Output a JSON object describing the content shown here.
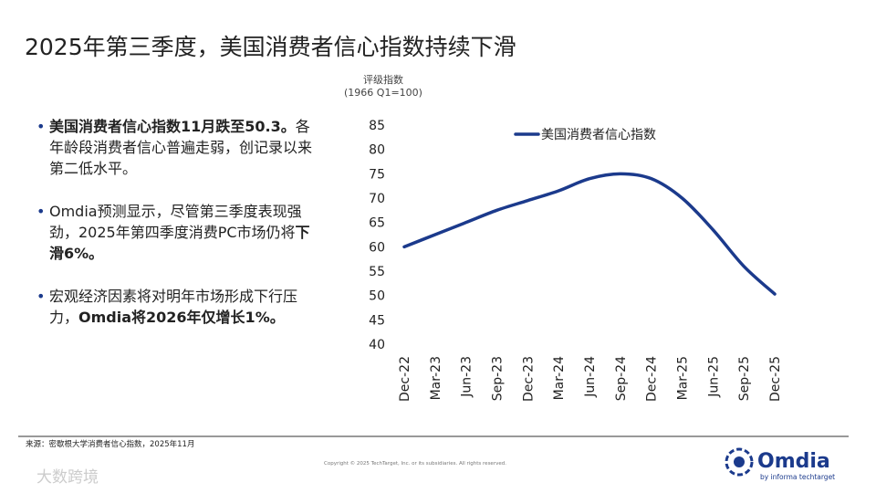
{
  "slide_title": "2025年第三季度，美国消费者信心指数持续下滑",
  "bullets": [
    {
      "segments": [
        {
          "text": "美国消费者信心指数11月跌至50.3。",
          "bold": true
        },
        {
          "text": "各年龄段消费者信心普遍走弱，创记录以来第二低水平。",
          "bold": false
        }
      ]
    },
    {
      "segments": [
        {
          "text": "Omdia预测显示，尽管第三季度表现强劲，2025年第四季度消费PC市场仍将",
          "bold": false
        },
        {
          "text": "下滑6%。",
          "bold": true
        }
      ]
    },
    {
      "segments": [
        {
          "text": "宏观经济因素将对明年市场形成下行压力，",
          "bold": false
        },
        {
          "text": "Omdia将2026年仅增长1%。",
          "bold": true
        }
      ]
    }
  ],
  "source": "来源：密歇根大学消费者信心指数，2025年11月",
  "copyright": "Copyright © 2025 TechTarget, Inc. or its subsidiaries. All rights reserved.",
  "logo": {
    "name": "Omdia",
    "tagline": "by informa techtarget"
  },
  "watermark": "大数跨境",
  "chart_data": {
    "type": "line",
    "y_axis_label": [
      "评级指数",
      "(1966 Q1=100)"
    ],
    "categories": [
      "Dec-22",
      "Mar-23",
      "Jun-23",
      "Sep-23",
      "Dec-23",
      "Mar-24",
      "Jun-24",
      "Sep-24",
      "Dec-24",
      "Mar-25",
      "Jun-25",
      "Sep-25",
      "Dec-25"
    ],
    "series": [
      {
        "name": "美国消费者信心指数",
        "color": "#1b3a8c",
        "values": [
          60,
          62.5,
          65,
          67.5,
          69.5,
          71.5,
          74,
          75,
          74,
          70,
          63.5,
          56,
          50.3
        ]
      }
    ],
    "ylim": [
      40,
      85
    ],
    "yticks": [
      40,
      45,
      50,
      55,
      60,
      65,
      70,
      75,
      80,
      85
    ],
    "grid": false,
    "legend": "top"
  }
}
